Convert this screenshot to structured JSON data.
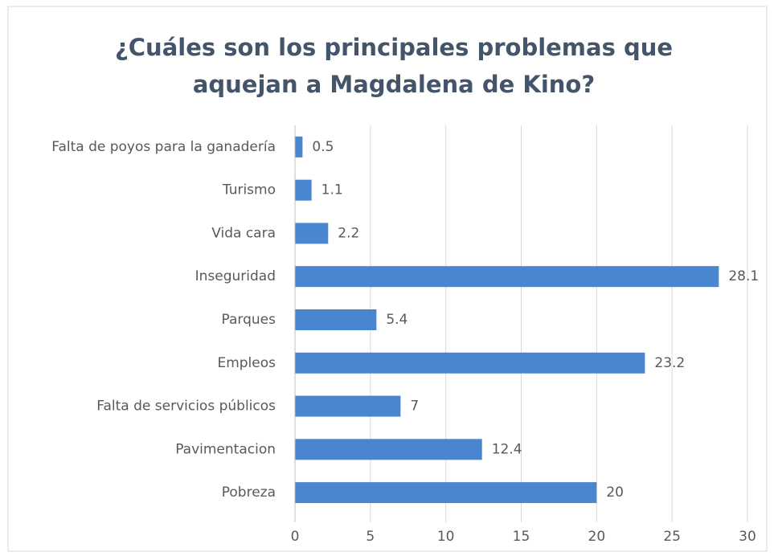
{
  "chart_data": {
    "type": "bar",
    "orientation": "horizontal",
    "title": "¿Cuáles son los principales problemas que aquejan a Magdalena de Kino?",
    "categories": [
      "Falta de poyos para la ganadería",
      "Turismo",
      "Vida cara",
      "Inseguridad",
      "Parques",
      "Empleos",
      "Falta de servicios públicos",
      "Pavimentacion",
      "Pobreza"
    ],
    "values": [
      0.5,
      1.1,
      2.2,
      28.1,
      5.4,
      23.2,
      7,
      12.4,
      20
    ],
    "color": "#4a86cf",
    "xlim": [
      0,
      30
    ],
    "xticks": [
      0,
      5,
      10,
      15,
      20,
      25,
      30
    ],
    "grid": true
  }
}
